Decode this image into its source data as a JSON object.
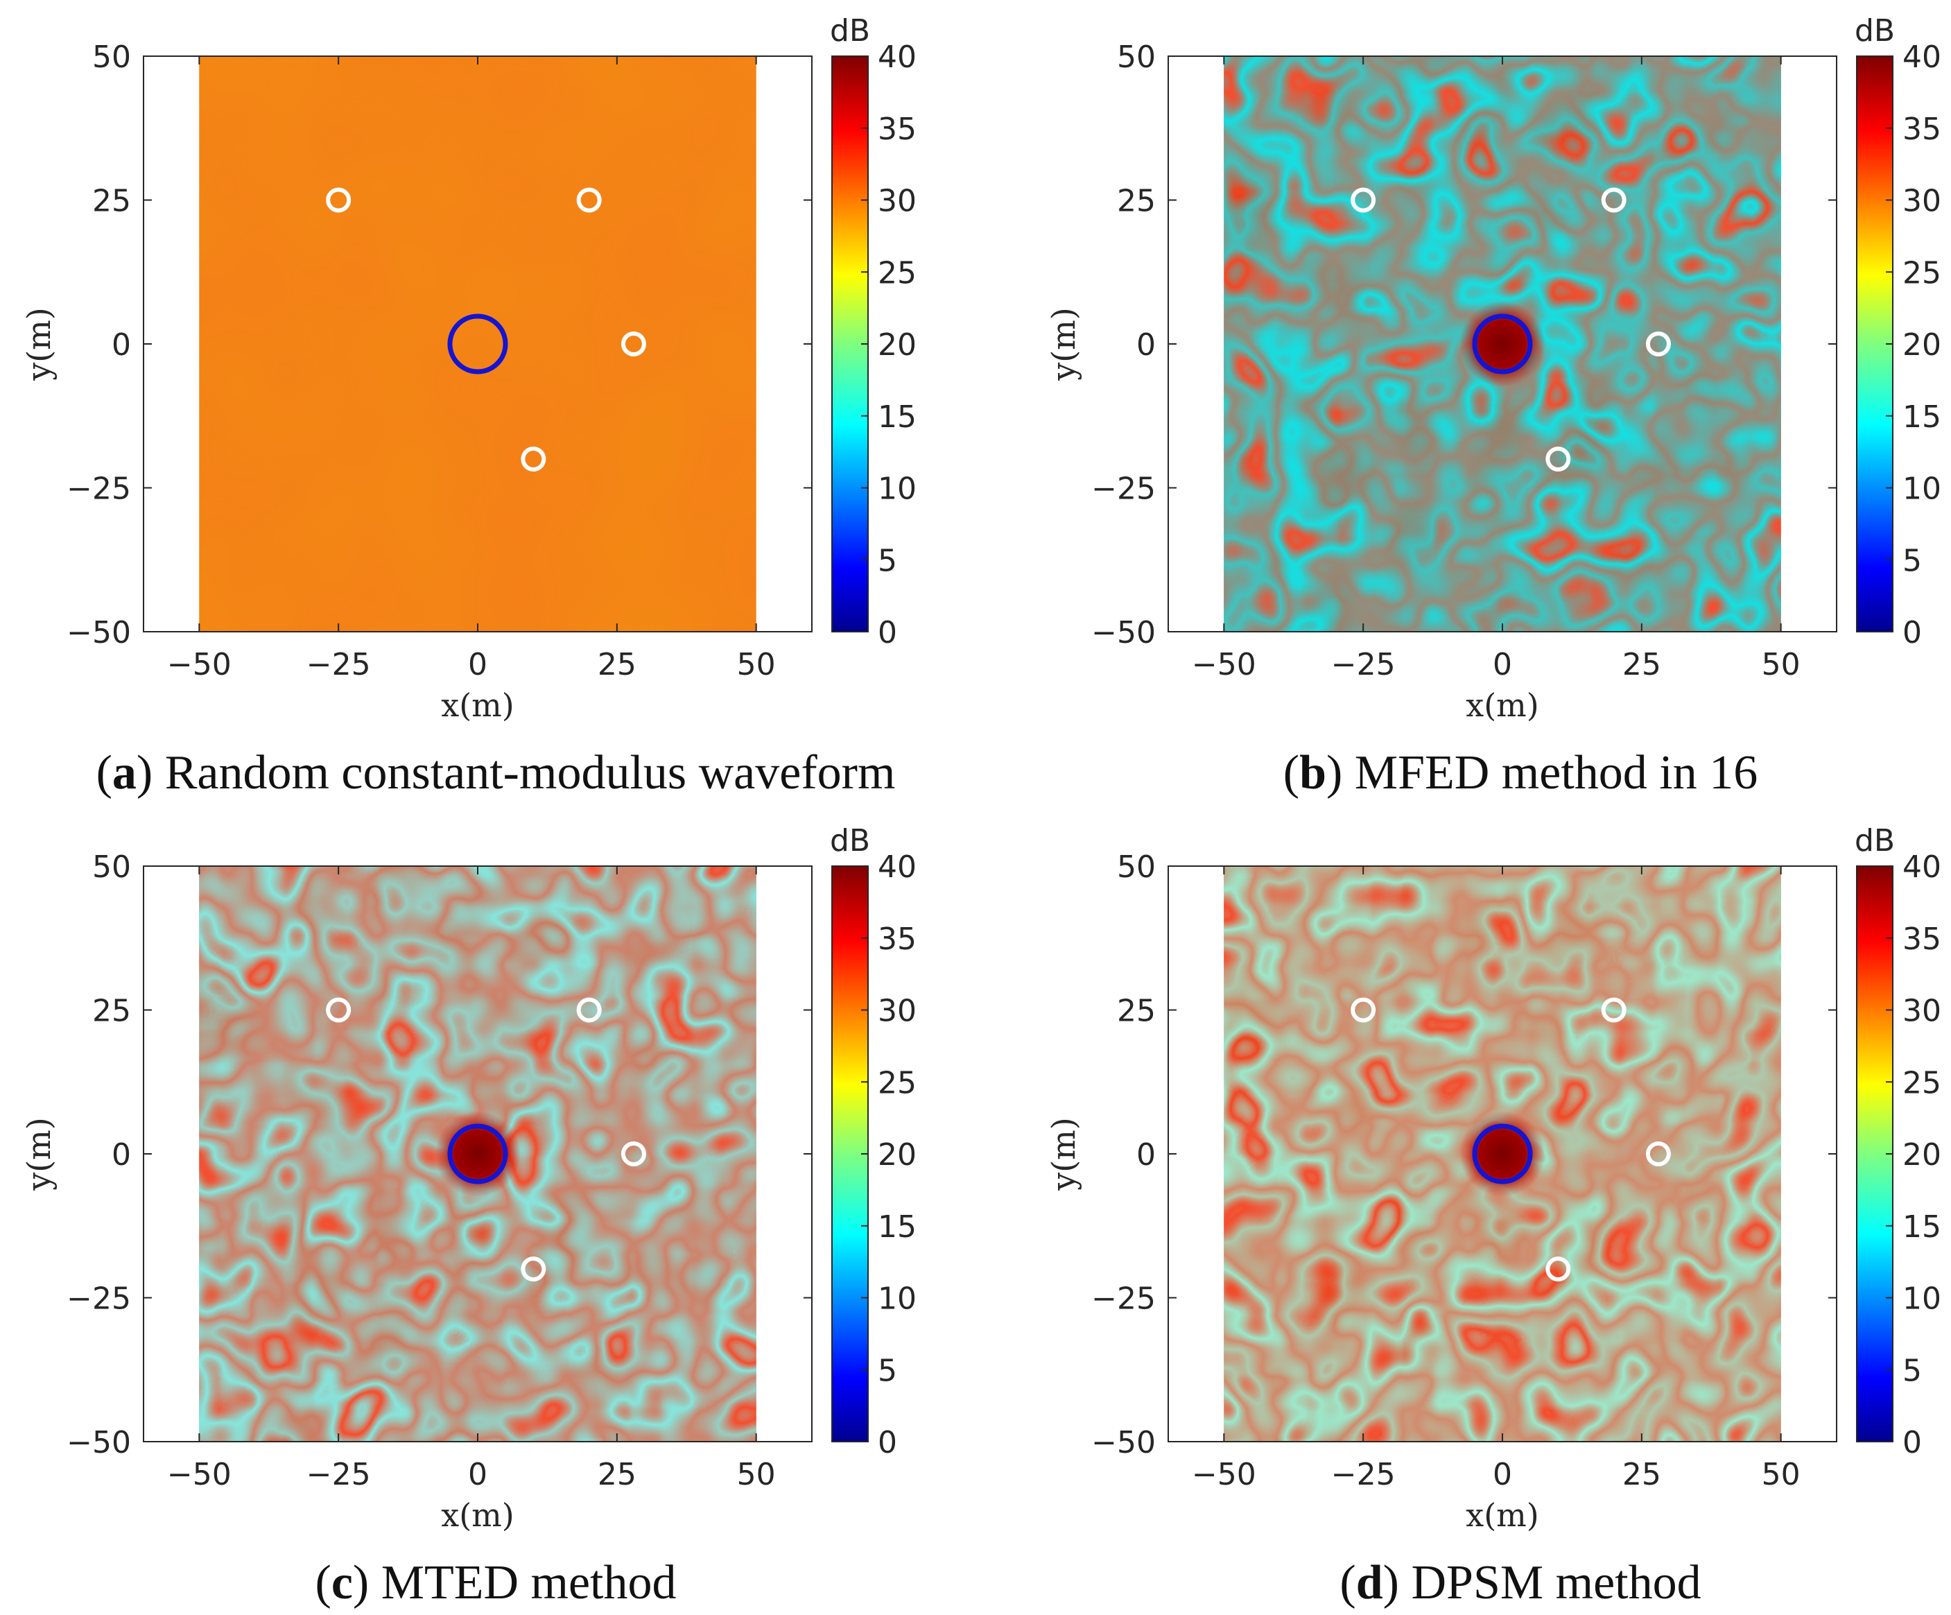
{
  "figure": {
    "panels": [
      {
        "id": "a",
        "caption_open": "(",
        "caption_letter": "a",
        "caption_close": ")",
        "caption_text": " Random constant-modulus waveform",
        "pattern": "flat"
      },
      {
        "id": "b",
        "caption_open": "(",
        "caption_letter": "b",
        "caption_close": ")",
        "caption_text": " MFED method in 16",
        "pattern": "speckle"
      },
      {
        "id": "c",
        "caption_open": "(",
        "caption_letter": "c",
        "caption_close": ")",
        "caption_text": " MTED method",
        "pattern": "speckle"
      },
      {
        "id": "d",
        "caption_open": "(",
        "caption_letter": "d",
        "caption_close": ")",
        "caption_text": " DPSM method",
        "pattern": "speckle"
      }
    ]
  },
  "chart_data": {
    "type": "heatmap",
    "title": "",
    "xlabel": "x(m)",
    "ylabel": "y(m)",
    "xlim": [
      -60,
      60
    ],
    "ylim": [
      -50,
      50
    ],
    "data_extent_x": [
      -50,
      50
    ],
    "x_ticks": [
      -50,
      -25,
      0,
      25,
      50
    ],
    "y_ticks": [
      50,
      25,
      0,
      -25,
      -50
    ],
    "x_tick_labels": [
      "−50",
      "−25",
      "0",
      "25",
      "50"
    ],
    "y_tick_labels": [
      "50",
      "25",
      "0",
      "−25",
      "−50"
    ],
    "colorbar": {
      "label": "dB",
      "range": [
        0,
        40
      ],
      "ticks": [
        0,
        5,
        10,
        15,
        20,
        25,
        30,
        35,
        40
      ],
      "tick_labels": [
        "0",
        "5",
        "10",
        "15",
        "20",
        "25",
        "30",
        "35",
        "40"
      ],
      "colormap": "jet"
    },
    "target": {
      "x": 0,
      "y": 0,
      "marker": "blue circle"
    },
    "interferers": [
      {
        "x": -25,
        "y": 25
      },
      {
        "x": 20,
        "y": 25
      },
      {
        "x": 28,
        "y": 0
      },
      {
        "x": 10,
        "y": -20
      }
    ],
    "panels": [
      {
        "id": "a",
        "caption": "Random constant-modulus waveform",
        "background_db": 31,
        "mainlobe_peak_db": 31
      },
      {
        "id": "b",
        "caption": "MFED method in 16",
        "background_db": 30,
        "mainlobe_peak_db": 40
      },
      {
        "id": "c",
        "caption": "MTED method",
        "background_db": 30,
        "mainlobe_peak_db": 40
      },
      {
        "id": "d",
        "caption": "DPSM method",
        "background_db": 30,
        "mainlobe_peak_db": 40
      }
    ]
  },
  "colors": {
    "target_marker": "#1414d2",
    "interferer_marker": "#ffffff",
    "axis": "#262626"
  }
}
